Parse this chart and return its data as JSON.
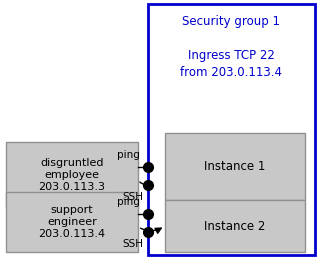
{
  "security_group_label": "Security group 1",
  "security_group_rule": "Ingress TCP 22\nfrom 203.0.113.4",
  "left_box1_label": "disgruntled\nemployee\n203.0.113.3",
  "left_box2_label": "support\nengineer\n203.0.113.4",
  "inst1_label": "Instance 1",
  "inst2_label": "Instance 2",
  "sg_color": "#0000cc",
  "box_facecolor": "#c8c8c8",
  "box_edgecolor": "#909090",
  "text_color_sg": "#0000cc",
  "ping_label": "ping",
  "ssh_label": "SSH",
  "figw": 3.19,
  "figh": 2.59,
  "dpi": 100
}
